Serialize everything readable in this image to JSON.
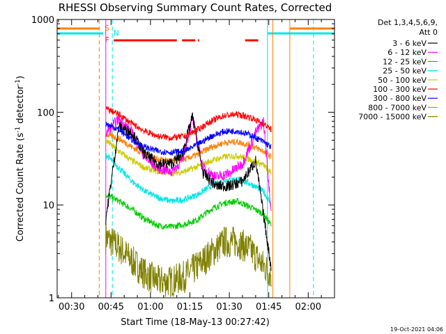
{
  "chart_data": {
    "type": "line",
    "title": "RHESSI Observing Summary Count Rates, Corrected",
    "xlabel": "Start Time (18-May-13 00:27:42)",
    "ylabel": "Corrected Count Rate (s⁻¹ detector⁻¹)",
    "ylabel_parts": [
      "Corrected Count Rate (s",
      "-1",
      " detector",
      "-1",
      ")"
    ],
    "y_scale": "log",
    "ylim": [
      1,
      1000
    ],
    "xlim_minutes": [
      24.5,
      130
    ],
    "x_ticks": [
      {
        "t": 30,
        "label": "00:30"
      },
      {
        "t": 45,
        "label": "00:45"
      },
      {
        "t": 60,
        "label": "01:00"
      },
      {
        "t": 75,
        "label": "01:15"
      },
      {
        "t": 90,
        "label": "01:30"
      },
      {
        "t": 105,
        "label": "01:45"
      },
      {
        "t": 120,
        "label": "02:00"
      }
    ],
    "y_ticks": [
      {
        "v": 1,
        "label": "1"
      },
      {
        "v": 10,
        "label": "10"
      },
      {
        "v": 100,
        "label": "100"
      },
      {
        "v": 1000,
        "label": "1000"
      }
    ],
    "detectors_label": "Det 1,3,4,5,6,9,",
    "attenuator_label": "Att 0",
    "legend_position": "right",
    "series": [
      {
        "name": "3 - 6 keV",
        "color": "#000000",
        "points": [
          [
            43,
            7
          ],
          [
            48,
            70
          ],
          [
            53,
            60
          ],
          [
            58,
            35
          ],
          [
            63,
            28
          ],
          [
            68,
            28
          ],
          [
            72,
            35
          ],
          [
            76,
            90
          ],
          [
            80,
            22
          ],
          [
            85,
            16
          ],
          [
            90,
            16
          ],
          [
            95,
            18
          ],
          [
            100,
            30
          ],
          [
            104,
            5
          ],
          [
            106,
            2
          ]
        ]
      },
      {
        "name": "6 - 12 keV",
        "color": "#ff00ff",
        "points": [
          [
            43,
            60
          ],
          [
            48,
            85
          ],
          [
            53,
            60
          ],
          [
            58,
            32
          ],
          [
            63,
            25
          ],
          [
            68,
            23
          ],
          [
            72,
            30
          ],
          [
            76,
            85
          ],
          [
            80,
            25
          ],
          [
            85,
            20
          ],
          [
            90,
            22
          ],
          [
            95,
            28
          ],
          [
            100,
            60
          ],
          [
            103,
            80
          ],
          [
            106,
            8
          ]
        ]
      },
      {
        "name": "12 - 25 keV",
        "color": "#00cc00",
        "points": [
          [
            43,
            13
          ],
          [
            48,
            11
          ],
          [
            53,
            9
          ],
          [
            58,
            7
          ],
          [
            63,
            6
          ],
          [
            68,
            5.8
          ],
          [
            73,
            6.2
          ],
          [
            78,
            7
          ],
          [
            83,
            9
          ],
          [
            88,
            10.5
          ],
          [
            93,
            11
          ],
          [
            98,
            9.5
          ],
          [
            103,
            8
          ],
          [
            106,
            6
          ]
        ]
      },
      {
        "name": "25 - 50 keV",
        "color": "#00e5e5",
        "points": [
          [
            43,
            35
          ],
          [
            48,
            25
          ],
          [
            53,
            18
          ],
          [
            58,
            14
          ],
          [
            63,
            12
          ],
          [
            68,
            11
          ],
          [
            73,
            11.5
          ],
          [
            78,
            13
          ],
          [
            83,
            16
          ],
          [
            88,
            18.5
          ],
          [
            93,
            19
          ],
          [
            98,
            17
          ],
          [
            103,
            14
          ],
          [
            106,
            10
          ]
        ]
      },
      {
        "name": "50 - 100 keV",
        "color": "#cccc00",
        "points": [
          [
            43,
            50
          ],
          [
            48,
            38
          ],
          [
            53,
            30
          ],
          [
            58,
            25
          ],
          [
            63,
            23
          ],
          [
            68,
            22
          ],
          [
            73,
            23
          ],
          [
            78,
            26
          ],
          [
            83,
            30
          ],
          [
            88,
            33
          ],
          [
            93,
            34
          ],
          [
            98,
            31
          ],
          [
            103,
            27
          ],
          [
            106,
            22
          ]
        ]
      },
      {
        "name": "100 - 300 keV",
        "color": "#ff0000",
        "points": [
          [
            43,
            110
          ],
          [
            48,
            95
          ],
          [
            53,
            75
          ],
          [
            58,
            62
          ],
          [
            63,
            55
          ],
          [
            68,
            53
          ],
          [
            73,
            55
          ],
          [
            78,
            65
          ],
          [
            83,
            80
          ],
          [
            88,
            92
          ],
          [
            93,
            95
          ],
          [
            98,
            88
          ],
          [
            103,
            75
          ],
          [
            106,
            65
          ]
        ]
      },
      {
        "name": "300 - 800 keV",
        "color": "#0000ff",
        "points": [
          [
            43,
            75
          ],
          [
            48,
            65
          ],
          [
            53,
            50
          ],
          [
            58,
            42
          ],
          [
            63,
            38
          ],
          [
            68,
            37
          ],
          [
            73,
            38
          ],
          [
            78,
            45
          ],
          [
            83,
            55
          ],
          [
            88,
            62
          ],
          [
            93,
            63
          ],
          [
            98,
            57
          ],
          [
            103,
            48
          ],
          [
            106,
            42
          ]
        ]
      },
      {
        "name": "800 - 7000 keV",
        "color": "#ff8000",
        "points": [
          [
            43,
            58
          ],
          [
            48,
            52
          ],
          [
            53,
            42
          ],
          [
            58,
            35
          ],
          [
            63,
            31
          ],
          [
            68,
            30
          ],
          [
            73,
            31
          ],
          [
            78,
            35
          ],
          [
            83,
            42
          ],
          [
            88,
            47
          ],
          [
            93,
            48
          ],
          [
            98,
            44
          ],
          [
            103,
            38
          ],
          [
            106,
            33
          ]
        ]
      },
      {
        "name": "7000 - 15000 keV",
        "color": "#808000",
        "points": [
          [
            43,
            4.5
          ],
          [
            48,
            3.5
          ],
          [
            53,
            2.5
          ],
          [
            58,
            1.8
          ],
          [
            63,
            1.5
          ],
          [
            68,
            1.5
          ],
          [
            73,
            1.7
          ],
          [
            78,
            2.2
          ],
          [
            83,
            3
          ],
          [
            88,
            4
          ],
          [
            93,
            4
          ],
          [
            98,
            3.3
          ],
          [
            103,
            2.2
          ],
          [
            106,
            1.8
          ]
        ]
      }
    ],
    "flags": [
      {
        "label": "S",
        "color": "#ff8000",
        "segments": [
          [
            24.5,
            40.5
          ],
          [
            113,
            130
          ]
        ]
      },
      {
        "label": "N",
        "color": "#00e5e5",
        "segments": [
          [
            24.5,
            42
          ],
          [
            104.5,
            130
          ]
        ]
      },
      {
        "label": "F",
        "color": "#ff0000",
        "segments": [
          [
            46,
            70
          ],
          [
            72,
            77
          ],
          [
            78,
            78.5
          ],
          [
            96,
            101
          ]
        ]
      }
    ],
    "vlines": [
      {
        "t": 40.5,
        "color": "#ff8000",
        "style": "dashed"
      },
      {
        "t": 43,
        "color": "#ff00ff",
        "style": "solid"
      },
      {
        "t": 45.5,
        "color": "#00e5e5",
        "style": "dashed"
      },
      {
        "t": 104.5,
        "color": "#00e5e5",
        "style": "solid"
      },
      {
        "t": 113,
        "color": "#ff8000",
        "style": "solid"
      },
      {
        "t": 122,
        "color": "#00e5e5",
        "style": "dashed"
      },
      {
        "t": 106.5,
        "color": "#ff8000",
        "style": "solid"
      }
    ],
    "timestamp": "19-Oct-2021 04:06"
  }
}
